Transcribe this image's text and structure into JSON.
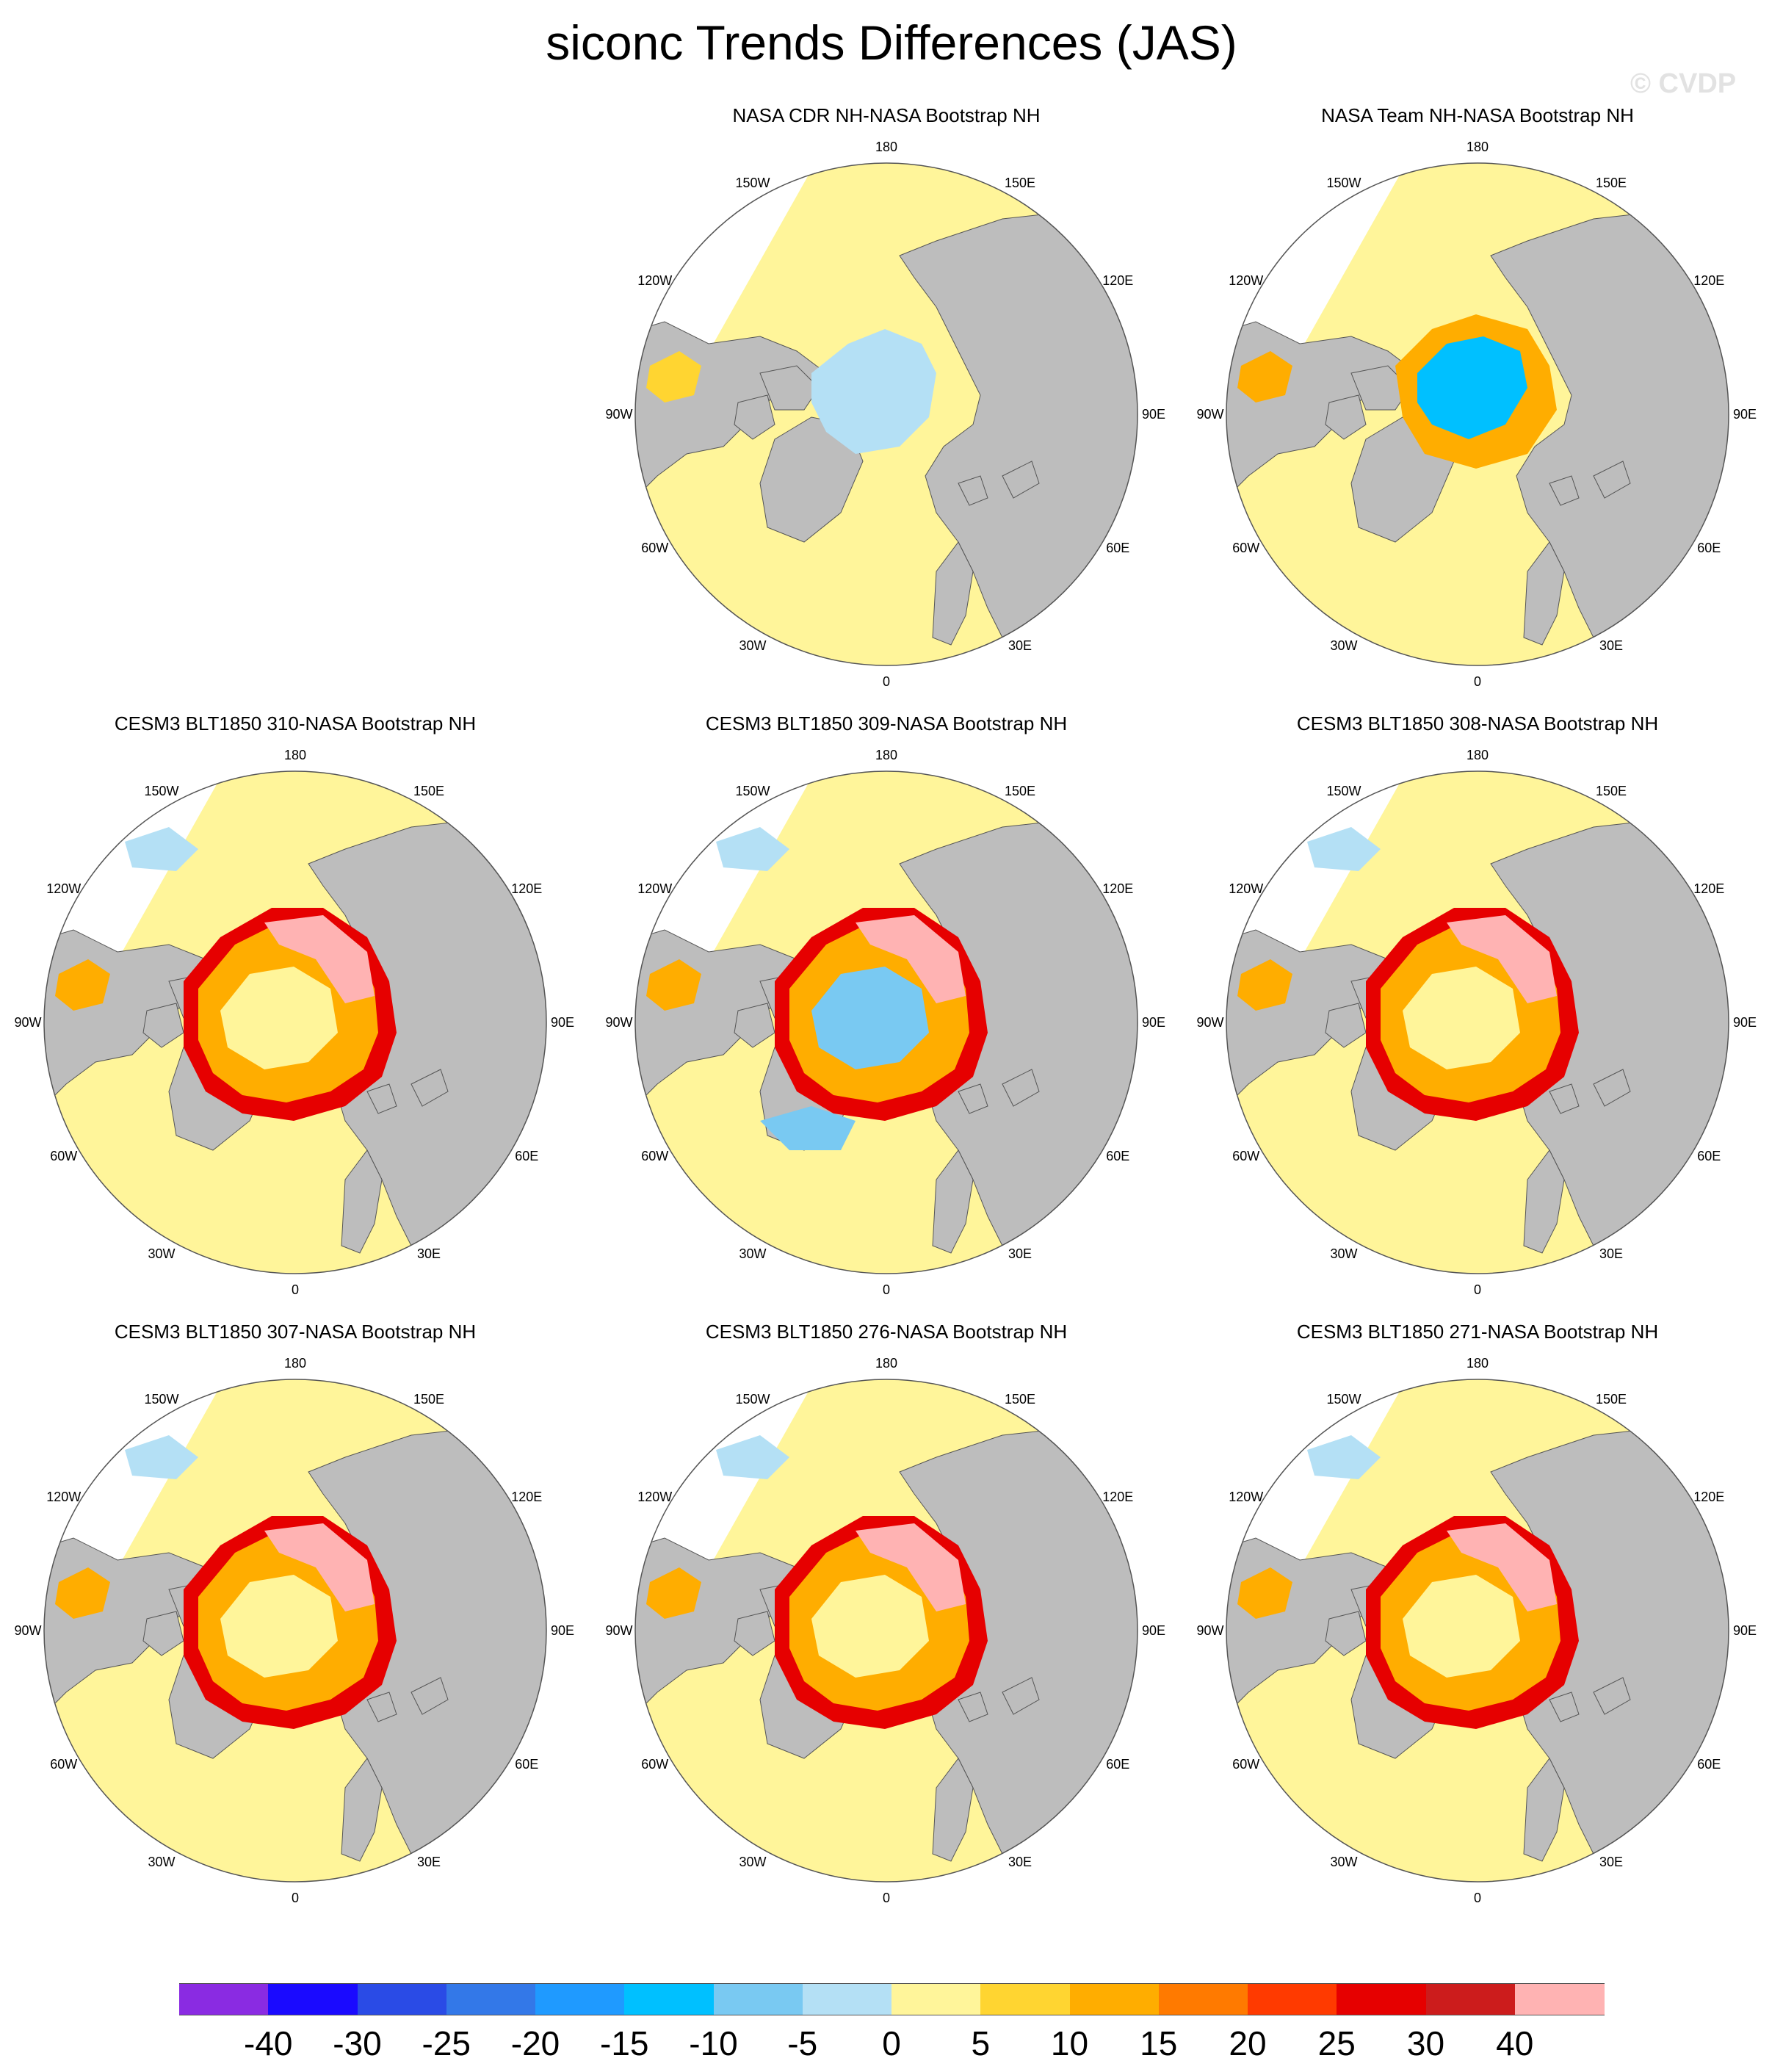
{
  "title": "siconc Trends Differences (JAS)",
  "watermark": "© CVDP",
  "lon_labels": [
    "180",
    "150E",
    "120E",
    "90E",
    "60E",
    "30E",
    "0",
    "30W",
    "60W",
    "90W",
    "120W",
    "150W"
  ],
  "panels": [
    {
      "title": "NASA CDR NH-NASA Bootstrap NH",
      "pattern": "cdr"
    },
    {
      "title": "NASA Team NH-NASA Bootstrap NH",
      "pattern": "team"
    },
    {
      "title": "CESM3 BLT1850 310-NASA Bootstrap NH",
      "pattern": "model"
    },
    {
      "title": "CESM3 BLT1850 309-NASA Bootstrap NH",
      "pattern": "model_blue"
    },
    {
      "title": "CESM3 BLT1850 308-NASA Bootstrap NH",
      "pattern": "model"
    },
    {
      "title": "CESM3 BLT1850 307-NASA Bootstrap NH",
      "pattern": "model"
    },
    {
      "title": "CESM3 BLT1850 276-NASA Bootstrap NH",
      "pattern": "model"
    },
    {
      "title": "CESM3 BLT1850 271-NASA Bootstrap NH",
      "pattern": "model"
    }
  ],
  "colorbar": {
    "colors": [
      "#8a2be2",
      "#1a0aff",
      "#2a4be6",
      "#3378e8",
      "#1f9aff",
      "#00c0ff",
      "#79c9f2",
      "#b4e0f5",
      "#fff59a",
      "#ffd531",
      "#ffad00",
      "#ff7a00",
      "#ff3a00",
      "#e60000",
      "#cc1c1c",
      "#ffb3b3"
    ],
    "labels": [
      "-40",
      "-30",
      "-25",
      "-20",
      "-15",
      "-10",
      "-5",
      "0",
      "5",
      "10",
      "15",
      "20",
      "25",
      "30",
      "40"
    ]
  },
  "map_colors": {
    "land": "#bdbdbd",
    "no_data": "#ffffff",
    "ocean_near_zero": "#fff59a"
  }
}
